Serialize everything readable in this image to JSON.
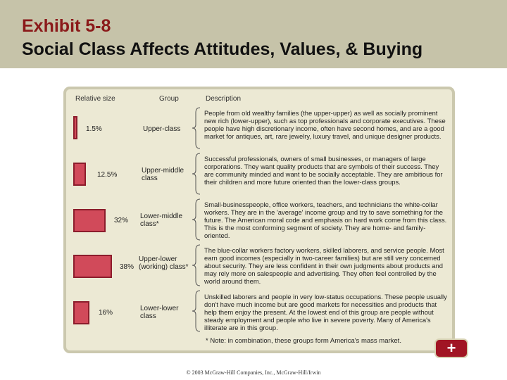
{
  "header": {
    "title_line1": "Exhibit 5-8",
    "title_line2": "Social Class Affects Attitudes, Values, & Buying"
  },
  "exhibit": {
    "col_relative_size": "Relative size",
    "col_group": "Group",
    "col_description": "Description",
    "rows": [
      {
        "percent": "1.5%",
        "percent_value": 1.5,
        "group": "Upper-class",
        "description": "People from old wealthy families (the upper-upper) as well as socially prominent new rich (lower-upper), such as top professionals and corporate executives. These people have high discretionary income, often have second homes, and are a good market for antiques, art, rare jewelry, luxury travel, and unique designer products."
      },
      {
        "percent": "12.5%",
        "percent_value": 12.5,
        "group": "Upper-middle class",
        "description": "Successful professionals, owners of small businesses, or managers of large corporations. They want quality products that are symbols of their success. They are community minded and want to be socially acceptable. They are ambitious for their children and more future oriented than the lower-class groups."
      },
      {
        "percent": "32%",
        "percent_value": 32,
        "group": "Lower-middle class*",
        "description": "Small-businesspeople, office workers, teachers, and technicians the white-collar workers. They are in the 'average' income group and try to save something for the future. The American moral code and emphasis on hard work come from this class. This is the most conforming segment of society. They are home- and family-oriented."
      },
      {
        "percent": "38%",
        "percent_value": 38,
        "group": "Upper-lower (working) class*",
        "description": "The blue-collar workers factory workers, skilled laborers, and service people. Most earn good incomes (especially in two-career families) but are still very concerned about security. They are less confident in their own judgments about products and may rely more on salespeople and advertising. They often feel controlled by the world around them."
      },
      {
        "percent": "16%",
        "percent_value": 16,
        "group": "Lower-lower class",
        "description": "Unskilled laborers and people in very low-status occupations. These people usually don't have much income but are good markets for necessities and products that help them enjoy the present. At the lowest end of this group are people without steady employment and people who live in severe poverty. Many of America's illiterate are in this group."
      }
    ],
    "note": "* Note: in combination, these groups form America's mass market."
  },
  "nav": {
    "plus_label": "+"
  },
  "footer": {
    "copyright": "© 2003 McGraw-Hill Companies, Inc., McGraw-Hill/Irwin"
  },
  "colors": {
    "header_bg": "#c6c3a9",
    "title_red": "#8b1a1a",
    "bar_fill": "#d14a5a",
    "button": "#a11524"
  }
}
